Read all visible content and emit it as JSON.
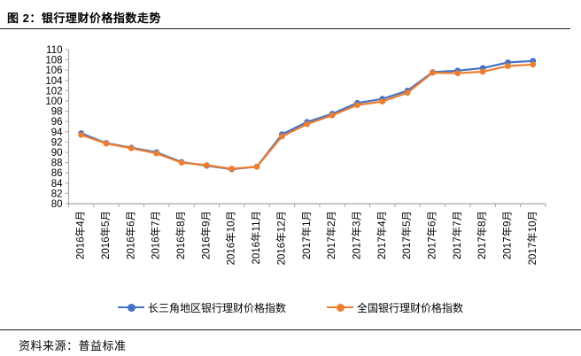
{
  "header": {
    "title": "图 2：银行理财价格指数走势"
  },
  "footer": {
    "source_text": "资料来源：普益标准"
  },
  "colors": {
    "yangtze_series": "#4472C4",
    "national_series": "#ED7D31",
    "axis_line": "#A6A6A6",
    "tick_label": "#000000",
    "divider_rule": "#1a1a1a"
  },
  "legend": {
    "items": [
      {
        "label": "长三角地区银行理财价格指数",
        "color": "#4472C4",
        "marker": "circle-on-line"
      },
      {
        "label": "全国银行理财价格指数",
        "color": "#ED7D31",
        "marker": "circle-on-line"
      }
    ]
  },
  "chart_data": {
    "type": "line",
    "title": "",
    "xlabel": "",
    "ylabel": "",
    "categories": [
      "2016年4月",
      "2016年5月",
      "2016年6月",
      "2016年7月",
      "2016年8月",
      "2016年9月",
      "2016年10月",
      "2016年11月",
      "2016年12月",
      "2017年1月",
      "2017年2月",
      "2017年3月",
      "2017年4月",
      "2017年5月",
      "2017年6月",
      "2017年7月",
      "2017年8月",
      "2017年9月",
      "2017年10月"
    ],
    "series": [
      {
        "name": "长三角地区银行理财价格指数",
        "color": "#4472C4",
        "values": [
          93.7,
          91.8,
          90.9,
          90.0,
          88.1,
          87.4,
          86.7,
          87.2,
          93.5,
          95.9,
          97.5,
          99.6,
          100.4,
          102.0,
          105.6,
          105.9,
          106.4,
          107.5,
          107.8
        ]
      },
      {
        "name": "全国银行理财价格指数",
        "color": "#ED7D31",
        "values": [
          93.4,
          91.7,
          90.8,
          89.8,
          88.0,
          87.5,
          86.8,
          87.2,
          93.1,
          95.5,
          97.2,
          99.2,
          99.9,
          101.6,
          105.5,
          105.4,
          105.7,
          106.8,
          107.1
        ]
      }
    ],
    "ylim": [
      80,
      110
    ],
    "ytick_step": 2,
    "yticks": [
      80,
      82,
      84,
      86,
      88,
      90,
      92,
      94,
      96,
      98,
      100,
      102,
      104,
      106,
      108,
      110
    ],
    "grid": false,
    "marker": "circle",
    "legend_position": "bottom",
    "x_label_rotation_deg": -90
  }
}
